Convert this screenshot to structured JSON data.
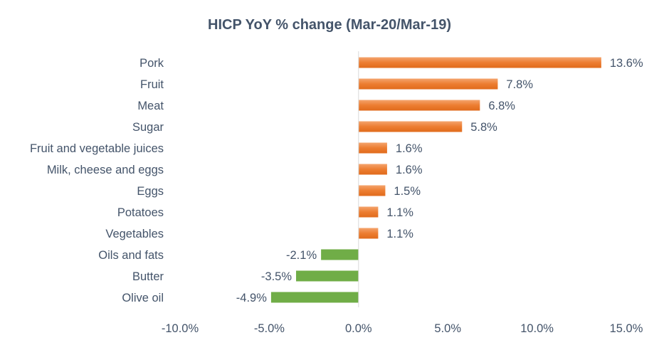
{
  "chart_data": {
    "type": "bar",
    "orientation": "horizontal",
    "title": "HICP YoY % change (Mar-20/Mar-19)",
    "categories": [
      "Pork",
      "Fruit",
      "Meat",
      "Sugar",
      "Fruit and vegetable juices",
      "Milk, cheese and eggs",
      "Eggs",
      "Potatoes",
      "Vegetables",
      "Oils and fats",
      "Butter",
      "Olive oil"
    ],
    "values": [
      13.6,
      7.8,
      6.8,
      5.8,
      1.6,
      1.6,
      1.5,
      1.1,
      1.1,
      -2.1,
      -3.5,
      -4.9
    ],
    "value_labels": [
      "13.6%",
      "7.8%",
      "6.8%",
      "5.8%",
      "1.6%",
      "1.6%",
      "1.5%",
      "1.1%",
      "1.1%",
      "-2.1%",
      "-3.5%",
      "-4.9%"
    ],
    "xlim": [
      -10,
      15
    ],
    "x_ticks": [
      -10,
      -5,
      0,
      5,
      10,
      15
    ],
    "x_tick_labels": [
      "-10.0%",
      "-5.0%",
      "0.0%",
      "5.0%",
      "10.0%",
      "15.0%"
    ],
    "xlabel": "",
    "ylabel": "",
    "grid": false,
    "legend": false,
    "colors": {
      "positive": "#ed7d31",
      "negative": "#70ad47",
      "axis": "#d9d9d9",
      "text": "#44546a"
    }
  }
}
